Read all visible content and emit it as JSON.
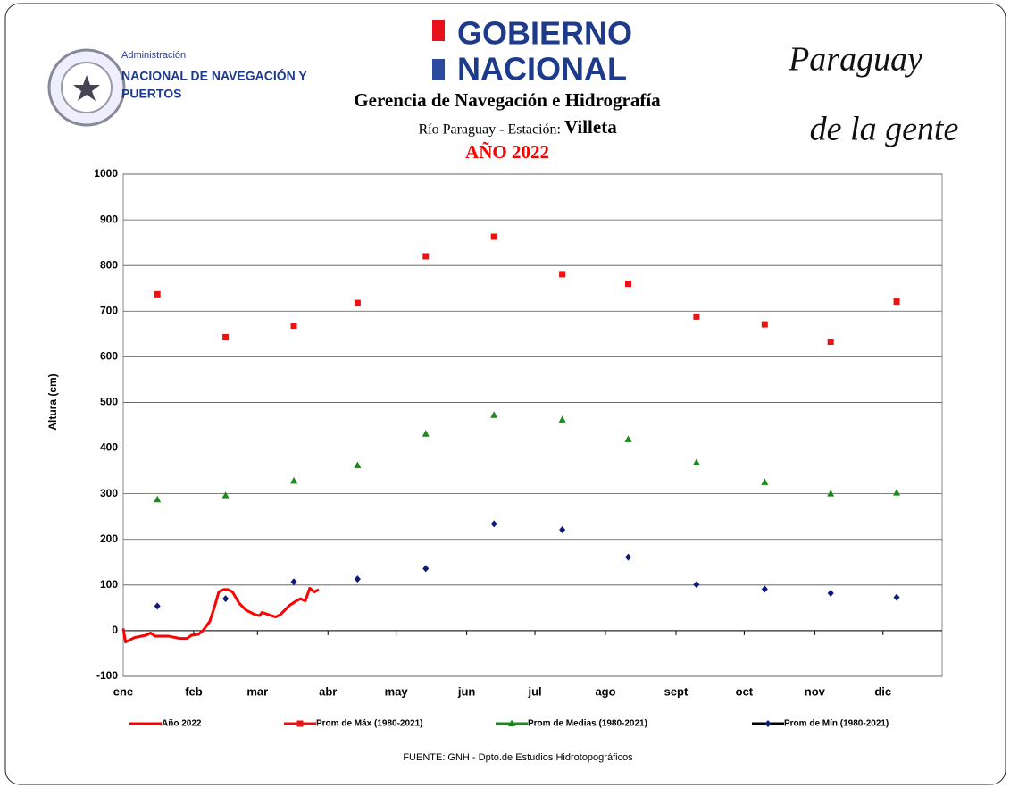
{
  "header": {
    "agency_small": "Administración",
    "agency_line1": "NACIONAL DE NAVEGACIÓN Y",
    "agency_line2": "PUERTOS",
    "gov_line1": "GOBIERNO",
    "gov_line2": "NACIONAL",
    "slogan_line1": "Paraguay",
    "slogan_line2": "de la gente"
  },
  "chart_data": {
    "type": "line",
    "title": "Gerencia de Navegación e Hidrografía",
    "subtitle": "Río Paraguay -  Estación:",
    "station": "Villeta",
    "year_label": "AÑO 2022",
    "ylabel": "Altura (cm)",
    "source": "FUENTE: GNH - Dpto.de Estudios Hidrotopográficos",
    "xlim": [
      0,
      360
    ],
    "ylim": [
      -100,
      1000
    ],
    "yticks": [
      -100,
      0,
      100,
      200,
      300,
      400,
      500,
      600,
      700,
      800,
      900,
      1000
    ],
    "xticks": [
      {
        "value": 0,
        "label": "ene"
      },
      {
        "value": 31,
        "label": "feb"
      },
      {
        "value": 59,
        "label": "mar"
      },
      {
        "value": 90,
        "label": "abr"
      },
      {
        "value": 120,
        "label": "may"
      },
      {
        "value": 151,
        "label": "jun"
      },
      {
        "value": 181,
        "label": "jul"
      },
      {
        "value": 212,
        "label": "ago"
      },
      {
        "value": 243,
        "label": "sept"
      },
      {
        "value": 273,
        "label": "oct"
      },
      {
        "value": 304,
        "label": "nov"
      },
      {
        "value": 334,
        "label": "dic"
      }
    ],
    "grid": true,
    "legend": "bottom",
    "series": [
      {
        "name": "Año 2022",
        "color": "#ff0000",
        "mode": "line",
        "x": [
          0,
          1,
          5,
          10,
          12,
          14,
          20,
          25,
          28,
          30,
          33,
          35,
          38,
          40,
          42,
          44,
          46,
          48,
          51,
          54,
          58,
          60,
          61,
          64,
          67,
          69,
          71,
          73,
          76,
          78,
          80,
          82,
          84,
          86
        ],
        "values": [
          5,
          -25,
          -15,
          -10,
          -5,
          -12,
          -12,
          -17,
          -17,
          -10,
          -8,
          0,
          20,
          50,
          85,
          90,
          90,
          85,
          60,
          45,
          35,
          33,
          40,
          35,
          30,
          35,
          45,
          55,
          65,
          70,
          65,
          93,
          85,
          90
        ]
      },
      {
        "name": "Prom de Máx  (1980-2021)",
        "color": "#ee1111",
        "mode": "markers",
        "marker": "square",
        "x": [
          15,
          45,
          75,
          103,
          133,
          163,
          193,
          222,
          252,
          282,
          311,
          340
        ],
        "values": [
          737,
          643,
          668,
          718,
          820,
          863,
          781,
          760,
          688,
          671,
          633,
          721
        ]
      },
      {
        "name": "Prom de Medias  (1980-2021)",
        "color": "#1a8a1a",
        "mode": "markers",
        "marker": "triangle",
        "x": [
          15,
          45,
          75,
          103,
          133,
          163,
          193,
          222,
          252,
          282,
          311,
          340
        ],
        "values": [
          287,
          296,
          328,
          362,
          431,
          472,
          462,
          419,
          368,
          325,
          300,
          302
        ]
      },
      {
        "name": "Prom de Mín  (1980-2021)",
        "color": "#0d1a7a",
        "legend_line_color": "#000000",
        "mode": "markers",
        "marker": "diamond",
        "x": [
          15,
          45,
          75,
          103,
          133,
          163,
          193,
          222,
          252,
          282,
          311,
          340
        ],
        "values": [
          54,
          70,
          107,
          113,
          136,
          234,
          221,
          161,
          101,
          91,
          82,
          73
        ]
      }
    ]
  }
}
